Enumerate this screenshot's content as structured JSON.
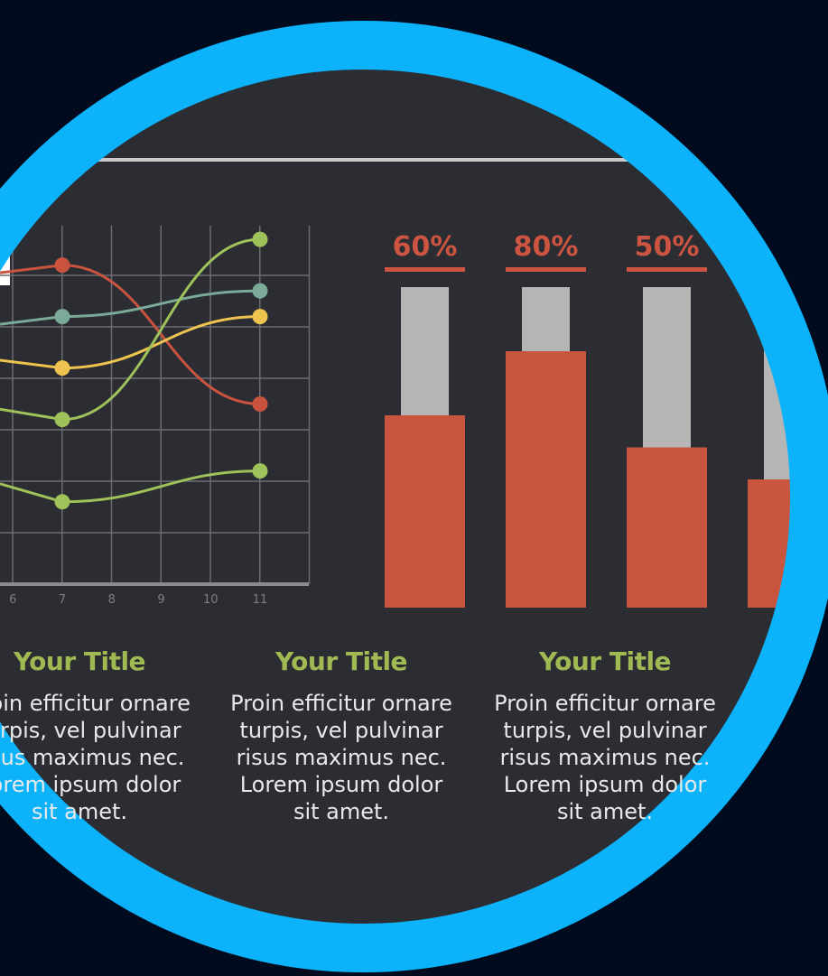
{
  "chart_data": [
    {
      "type": "line",
      "x": [
        6,
        7,
        8,
        9,
        10,
        11
      ],
      "xticks": [
        "6",
        "7",
        "8",
        "9",
        "10",
        "11"
      ],
      "grid": true,
      "series": [
        {
          "color": "#c9533f",
          "x": [
            7,
            11
          ],
          "values": [
            6.2,
            3.5
          ]
        },
        {
          "color": "#7bab98",
          "x": [
            7,
            11
          ],
          "values": [
            5.2,
            5.7
          ]
        },
        {
          "color": "#eec34f",
          "x": [
            7,
            11
          ],
          "values": [
            4.2,
            5.2
          ]
        },
        {
          "color": "#9fc25a",
          "x": [
            7,
            11
          ],
          "values": [
            3.2,
            6.7
          ]
        },
        {
          "color": "#9fc25a",
          "x": [
            7,
            11
          ],
          "values": [
            1.6,
            2.2
          ]
        }
      ]
    },
    {
      "type": "bar",
      "categories": [
        "",
        "",
        "",
        ""
      ],
      "values": [
        60,
        80,
        50,
        40
      ],
      "data_labels": [
        "60%",
        "80%",
        "50%",
        ""
      ],
      "ylim": [
        0,
        100
      ],
      "bar_color": "#c9553f",
      "track_color": "#b6b5b5"
    }
  ],
  "captions": [
    {
      "title": "Your Title",
      "body": "Proin efficitur ornare\nturpis, vel pulvinar\nrisus maximus nec.\nLorem ipsum dolor\nsit amet."
    },
    {
      "title": "Your Title",
      "body": "Proin efficitur ornare\nturpis, vel pulvinar\nrisus maximus nec.\nLorem ipsum dolor\nsit amet."
    },
    {
      "title": "Your Title",
      "body": "Proin efficitur ornare\nturpis, vel pulvinar\nrisus maximus nec.\nLorem ipsum dolor\nsit amet."
    }
  ],
  "colors": {
    "background": "#020a1e",
    "panel": "#2c2d32",
    "ring": "#0cb3fa",
    "accent_title": "#9fba52"
  }
}
